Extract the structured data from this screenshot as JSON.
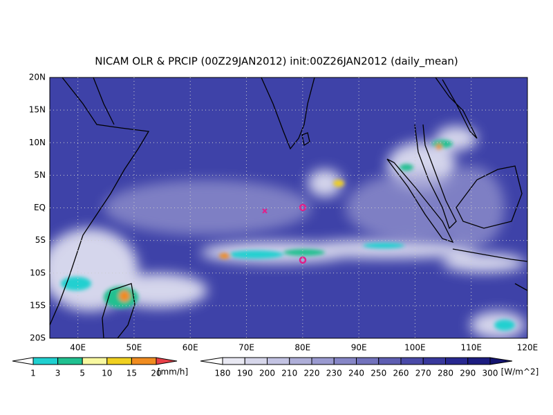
{
  "title": "NICAM OLR & PRCIP (00Z29JAN2012) init:00Z26JAN2012 (daily_mean)",
  "map": {
    "lat_labels": [
      "20N",
      "15N",
      "10N",
      "5N",
      "EQ",
      "5S",
      "10S",
      "15S",
      "20S"
    ],
    "lon_labels": [
      "40E",
      "50E",
      "60E",
      "70E",
      "80E",
      "90E",
      "100E",
      "110E",
      "120E"
    ]
  },
  "legends": [
    {
      "name": "precipitation",
      "unit": "[mm/h]",
      "labels": [
        "1",
        "3",
        "5",
        "10",
        "15",
        "20"
      ],
      "colors": [
        "#ffffff",
        "#20d0d0",
        "#20c090",
        "#f8f8a0",
        "#f0d020",
        "#f08c20",
        "#e84048"
      ]
    },
    {
      "name": "olr",
      "unit": "[W/m^2]",
      "labels": [
        "180",
        "190",
        "200",
        "210",
        "220",
        "230",
        "240",
        "250",
        "260",
        "270",
        "280",
        "290",
        "300"
      ],
      "colors": [
        "#ffffff",
        "#e8e8f2",
        "#d6d6ea",
        "#c2c2e2",
        "#aeaed8",
        "#9a9ad0",
        "#8686c6",
        "#7272bc",
        "#5e5eb2",
        "#4a4aa8",
        "#38389c",
        "#282890",
        "#1c1c80",
        "#141470"
      ]
    }
  ]
}
